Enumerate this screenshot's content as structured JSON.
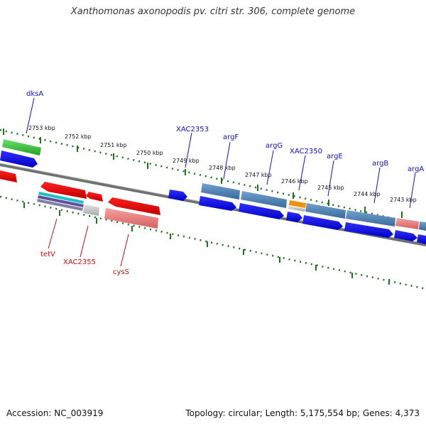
{
  "title": "Xanthomonas axonopodis pv. citri str. 306, complete genome",
  "footer": {
    "accession": "Accession: NC_003919",
    "summary": "Topology: circular; Length: 5,175,554 bp; Genes: 4,373"
  },
  "ticks": [
    "2753 kbp",
    "2752 kbp",
    "2751 kbp",
    "2750 kbp",
    "2749 kbp",
    "2748 kbp",
    "2747 kbp",
    "2746 kbp",
    "2745 kbp",
    "2744 kbp",
    "2743 kbp"
  ],
  "genes_top": [
    {
      "name": "dksA"
    },
    {
      "name": "XAC2353"
    },
    {
      "name": "argF"
    },
    {
      "name": "argG"
    },
    {
      "name": "XAC2350"
    },
    {
      "name": "argE"
    },
    {
      "name": "argB"
    },
    {
      "name": "argA"
    }
  ],
  "genes_bottom": [
    {
      "name": "tetV"
    },
    {
      "name": "XAC2355"
    },
    {
      "name": "cysS"
    }
  ],
  "colors": {
    "forward_cds": "#0000ee",
    "reverse_cds": "#ee0000",
    "forward_gene_steel": "#4a7fb0",
    "reverse_gene_pink": "#e87878",
    "rna_green": "#30c030",
    "misc_orange": "#f09010",
    "backbone": "#808080",
    "tick_green": "#207020",
    "label_blue": "#1010c0",
    "label_red": "#c01010"
  }
}
